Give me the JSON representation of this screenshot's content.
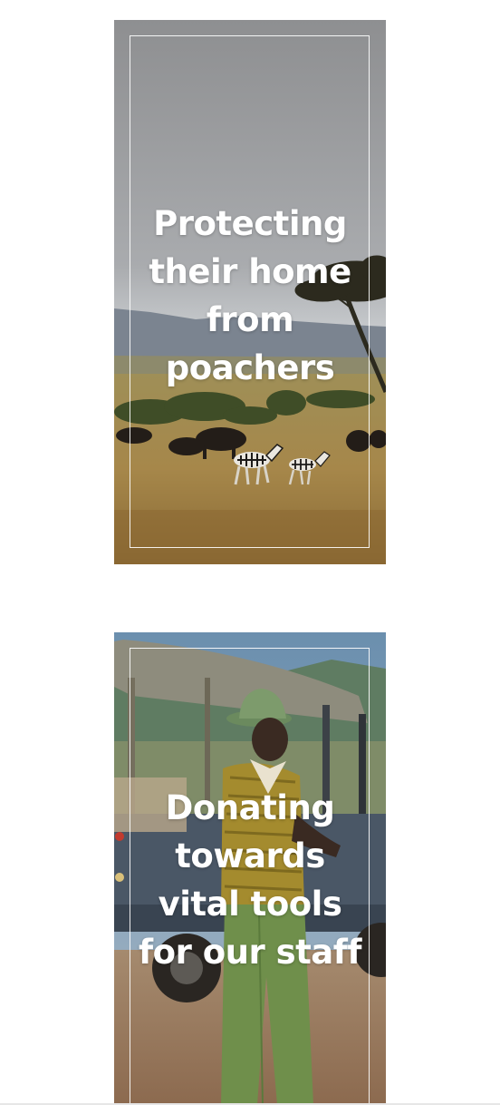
{
  "cards": [
    {
      "caption": "Protecting their home from poachers",
      "image": "savanna-wildlife-photo"
    },
    {
      "caption": "Donating towards vital tools for our staff",
      "image": "ranger-with-vehicle-photo"
    }
  ]
}
